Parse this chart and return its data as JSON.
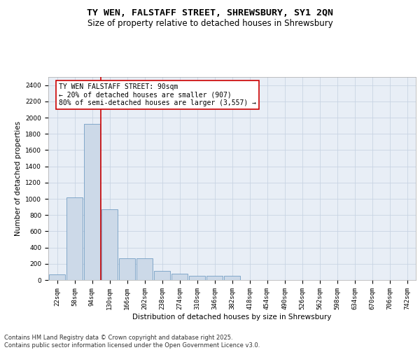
{
  "title": "TY WEN, FALSTAFF STREET, SHREWSBURY, SY1 2QN",
  "subtitle": "Size of property relative to detached houses in Shrewsbury",
  "xlabel": "Distribution of detached houses by size in Shrewsbury",
  "ylabel": "Number of detached properties",
  "bar_color": "#ccd9e8",
  "bar_edge_color": "#6090bb",
  "grid_color": "#c8d4e4",
  "bg_color": "#e8eef6",
  "annotation_box_color": "#cc0000",
  "vline_color": "#cc0000",
  "vline_x_index": 2,
  "annotation_text": "TY WEN FALSTAFF STREET: 90sqm\n← 20% of detached houses are smaller (907)\n80% of semi-detached houses are larger (3,557) →",
  "categories": [
    "22sqm",
    "58sqm",
    "94sqm",
    "130sqm",
    "166sqm",
    "202sqm",
    "238sqm",
    "274sqm",
    "310sqm",
    "346sqm",
    "382sqm",
    "418sqm",
    "454sqm",
    "490sqm",
    "526sqm",
    "562sqm",
    "598sqm",
    "634sqm",
    "670sqm",
    "706sqm",
    "742sqm"
  ],
  "values": [
    70,
    1020,
    1920,
    870,
    270,
    270,
    110,
    80,
    55,
    50,
    55,
    0,
    0,
    0,
    0,
    0,
    0,
    0,
    0,
    0,
    0
  ],
  "ylim": [
    0,
    2500
  ],
  "yticks": [
    0,
    200,
    400,
    600,
    800,
    1000,
    1200,
    1400,
    1600,
    1800,
    2000,
    2200,
    2400
  ],
  "footer": "Contains HM Land Registry data © Crown copyright and database right 2025.\nContains public sector information licensed under the Open Government Licence v3.0.",
  "title_fontsize": 9.5,
  "subtitle_fontsize": 8.5,
  "axis_label_fontsize": 7.5,
  "tick_fontsize": 6.5,
  "annotation_fontsize": 7,
  "footer_fontsize": 6
}
